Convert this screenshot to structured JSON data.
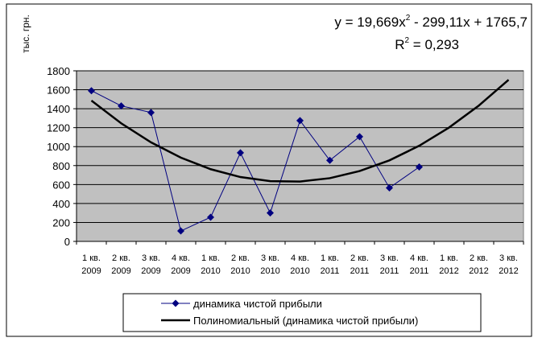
{
  "chart_data": {
    "type": "line",
    "y_label": "тыс. грн.",
    "equation": [
      "y = 19,669x",
      "2",
      " - 299,11x + 1765,7"
    ],
    "r_squared": [
      "R",
      "2",
      " = 0,293"
    ],
    "categories": [
      [
        "1 кв.",
        "2009"
      ],
      [
        "2 кв.",
        "2009"
      ],
      [
        "3 кв.",
        "2009"
      ],
      [
        "4 кв.",
        "2009"
      ],
      [
        "1 кв.",
        "2010"
      ],
      [
        "2 кв.",
        "2010"
      ],
      [
        "3 кв.",
        "2010"
      ],
      [
        "4 кв.",
        "2010"
      ],
      [
        "1 кв.",
        "2011"
      ],
      [
        "2 кв.",
        "2011"
      ],
      [
        "3 кв.",
        "2011"
      ],
      [
        "4 кв.",
        "2011"
      ],
      [
        "1 кв.",
        "2012"
      ],
      [
        "2 кв.",
        "2012"
      ],
      [
        "3 кв.",
        "2012"
      ]
    ],
    "series": [
      {
        "name": "динамика чистой прибыли",
        "color": "#000080",
        "marker": "diamond",
        "values": [
          1590,
          1430,
          1360,
          110,
          255,
          935,
          300,
          1275,
          855,
          1105,
          565,
          785,
          null,
          null,
          null
        ]
      },
      {
        "name": "Полиномиальный (динамика чистой прибыли)",
        "color": "#000000",
        "marker": "none",
        "values": [
          1486,
          1246,
          1045,
          884,
          762,
          679,
          636,
          632,
          667,
          742,
          855,
          1009,
          1201,
          1433,
          1705
        ]
      }
    ],
    "ylim": [
      0,
      1800
    ],
    "yticks": [
      0,
      200,
      400,
      600,
      800,
      1000,
      1200,
      1400,
      1600,
      1800
    ],
    "grid": true,
    "plot_color": "#c0c0c0"
  }
}
